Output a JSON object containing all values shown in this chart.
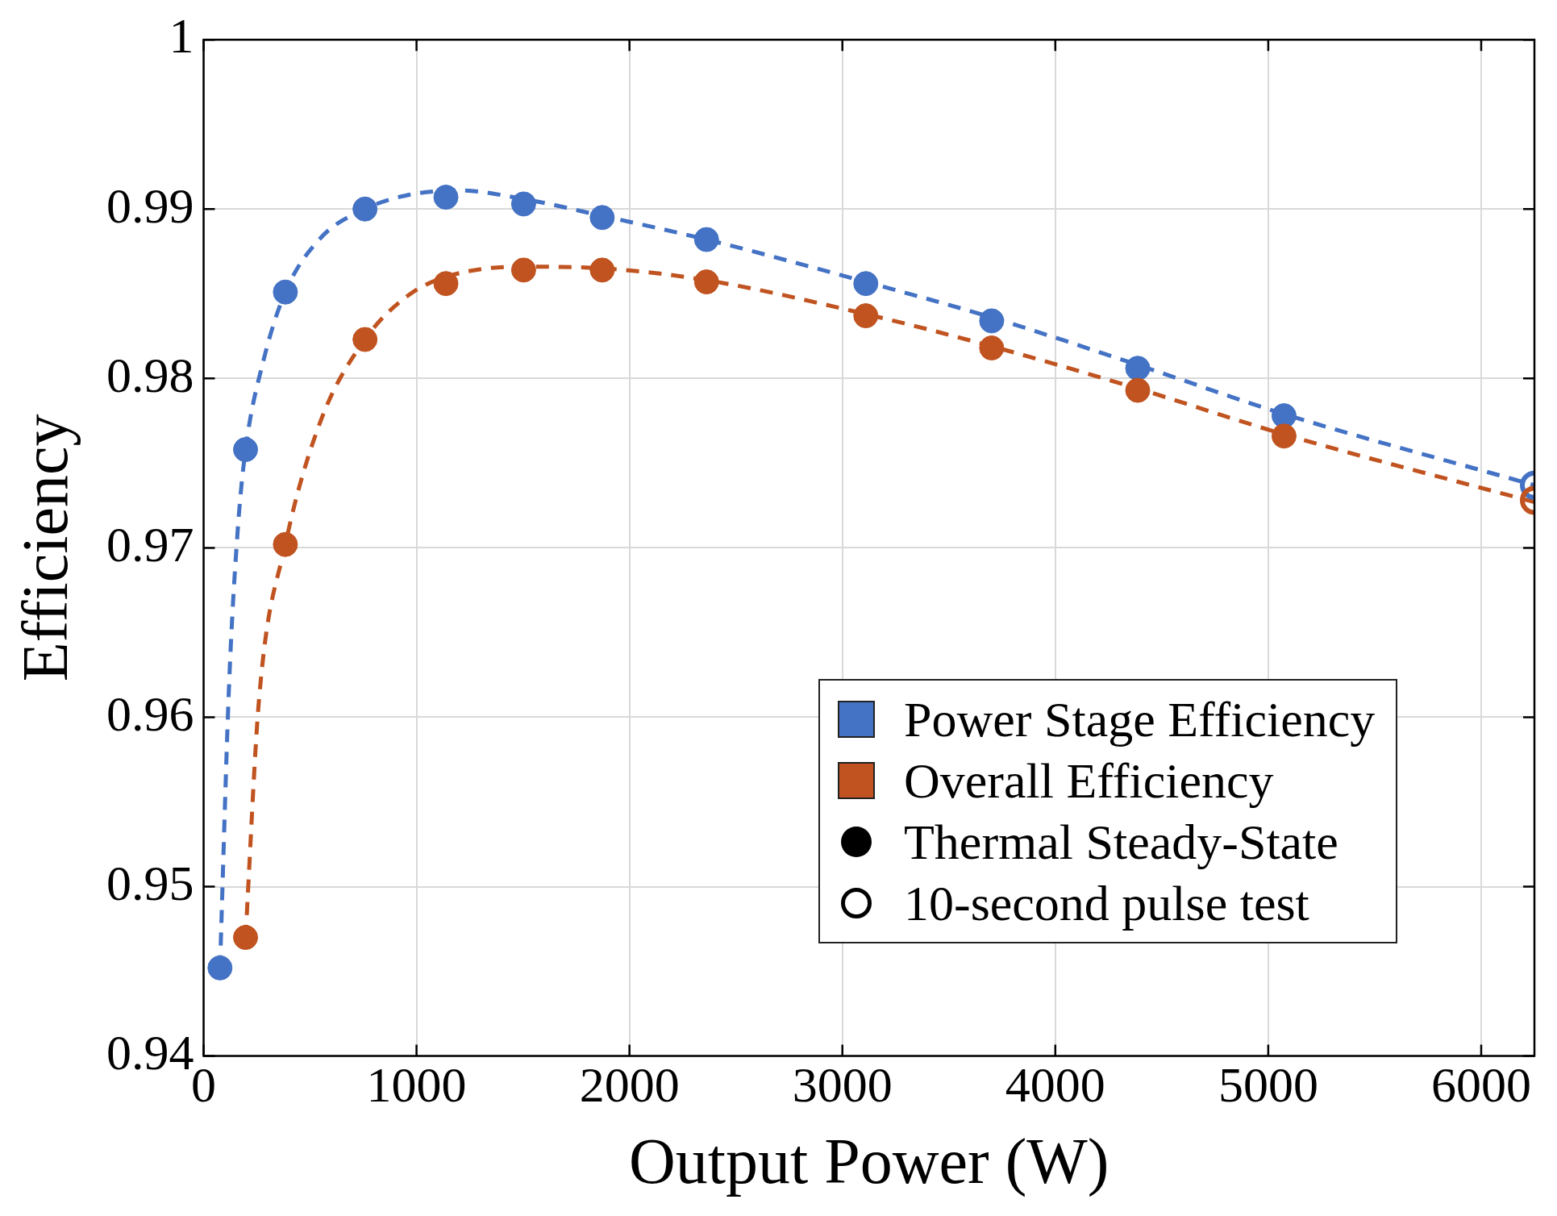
{
  "chart_data": {
    "type": "scatter",
    "xlabel": "Output Power (W)",
    "ylabel": "Efficiency",
    "xlim": [
      0,
      6250
    ],
    "xticks": [
      0,
      1000,
      2000,
      3000,
      4000,
      5000,
      6000
    ],
    "ylim": [
      0.94,
      1
    ],
    "yticks": [
      0.94,
      0.95,
      0.96,
      0.97,
      0.98,
      0.99,
      1
    ],
    "grid": true,
    "legend": "bottom right",
    "annotations": [
      "Thermal Steady-State",
      "10-second pulse test"
    ],
    "series": [
      {
        "name": "Power Stage Efficiency",
        "type": "line",
        "line_style": "dashed",
        "marker": "none",
        "color": "#4472c4",
        "x": [
          77,
          120,
          160,
          197,
          280,
          384,
          550,
          758,
          950,
          1200,
          1500,
          1872,
          2362,
          3110,
          3701,
          4387,
          5074,
          6250
        ],
        "values": [
          0.9452,
          0.962,
          0.971,
          0.9758,
          0.981,
          0.9851,
          0.9883,
          0.99,
          0.9908,
          0.9911,
          0.9906,
          0.9896,
          0.9882,
          0.9857,
          0.9836,
          0.9808,
          0.9779,
          0.9737
        ]
      },
      {
        "name": "Overall Efficiency",
        "type": "line",
        "line_style": "dashed",
        "marker": "none",
        "color": "#c0531f",
        "x": [
          197,
          260,
          384,
          550,
          758,
          950,
          1138,
          1500,
          1872,
          2362,
          3110,
          3701,
          4387,
          5074,
          6250
        ],
        "values": [
          0.947,
          0.961,
          0.9702,
          0.9775,
          0.9823,
          0.9848,
          0.986,
          0.9866,
          0.9865,
          0.9858,
          0.9838,
          0.9819,
          0.9794,
          0.9767,
          0.9727
        ]
      },
      {
        "marker": "circle",
        "x": [
          77,
          197,
          384,
          758,
          1138,
          1503,
          1872,
          2362,
          3110,
          3701,
          4387,
          5074,
          197,
          384,
          758,
          1138,
          1503,
          1872,
          2362,
          3110,
          3701,
          4387,
          5074
        ],
        "values": [
          0.9452,
          0.9758,
          0.9851,
          0.99,
          0.9907,
          0.9903,
          0.9895,
          0.9882,
          0.9856,
          0.9834,
          0.9806,
          0.9778,
          0.947,
          0.9702,
          0.9823,
          0.9856,
          0.9864,
          0.9864,
          0.9857,
          0.9837,
          0.9818,
          0.9793,
          0.9766
        ],
        "colors": [
          "#4472c4",
          "#4472c4",
          "#4472c4",
          "#4472c4",
          "#4472c4",
          "#4472c4",
          "#4472c4",
          "#4472c4",
          "#4472c4",
          "#4472c4",
          "#4472c4",
          "#4472c4",
          "#c0531f",
          "#c0531f",
          "#c0531f",
          "#c0531f",
          "#c0531f",
          "#c0531f",
          "#c0531f",
          "#c0531f",
          "#c0531f",
          "#c0531f",
          "#c0531f"
        ]
      },
      {
        "marker": "circle",
        "x": [
          6250,
          6250
        ],
        "values": [
          0.9737,
          0.9728
        ],
        "colors": [
          "#4472c4",
          "#c0531f"
        ]
      }
    ]
  }
}
